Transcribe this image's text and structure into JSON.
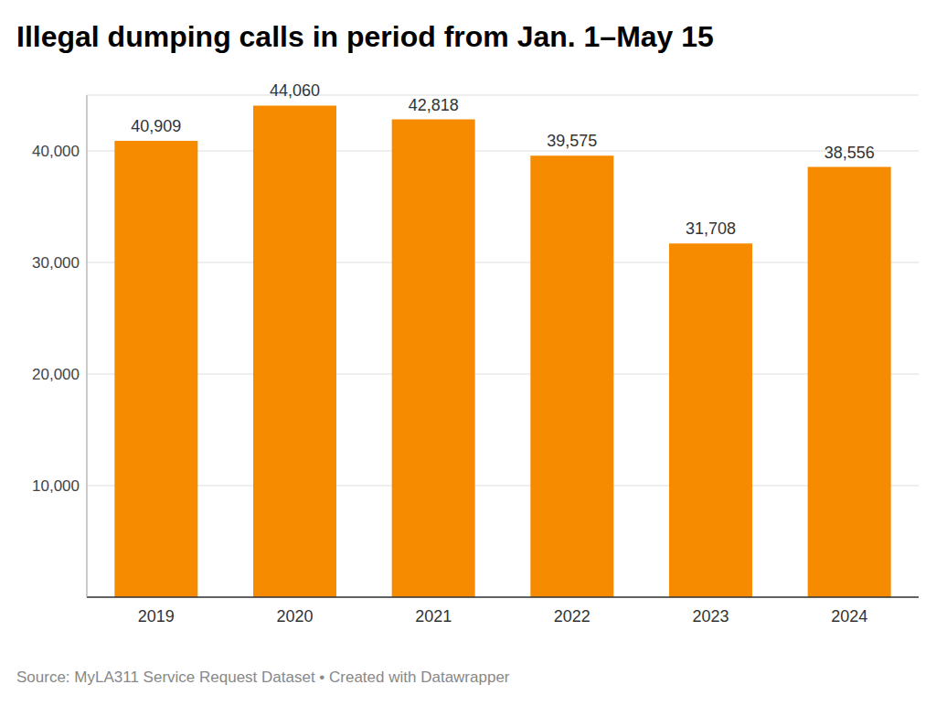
{
  "chart_data": {
    "type": "bar",
    "title": "Illegal dumping calls in period from Jan. 1–May 15",
    "source": "Source: MyLA311 Service Request Dataset • Created with Datawrapper",
    "categories": [
      "2019",
      "2020",
      "2021",
      "2022",
      "2023",
      "2024"
    ],
    "values": [
      40909,
      44060,
      42818,
      39575,
      31708,
      38556
    ],
    "value_labels": [
      "40,909",
      "44,060",
      "42,818",
      "39,575",
      "31,708",
      "38,556"
    ],
    "data_labels": true,
    "color": "#f68b00",
    "ylim": [
      0,
      45000
    ],
    "yticks": [
      {
        "value": 10000,
        "label": "10,000"
      },
      {
        "value": 20000,
        "label": "20,000"
      },
      {
        "value": 30000,
        "label": "30,000"
      },
      {
        "value": 40000,
        "label": "40,000"
      }
    ],
    "grid": true
  }
}
